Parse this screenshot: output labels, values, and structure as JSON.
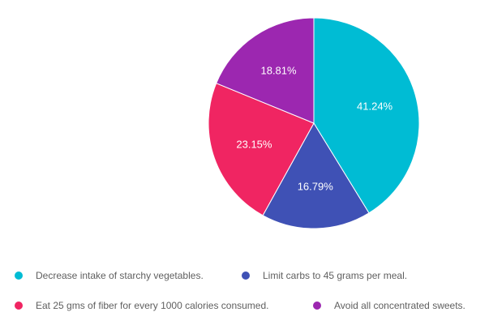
{
  "chart_data": {
    "type": "pie",
    "slices": [
      {
        "label": "Decrease intake of starchy vegetables.",
        "value": 41.24,
        "value_label": "41.24%",
        "color": "#00bcd4"
      },
      {
        "label": "Limit carbs to 45 grams per meal.",
        "value": 16.79,
        "value_label": "16.79%",
        "color": "#3f51b5"
      },
      {
        "label": "Eat 25 gms of fiber for every 1000 calories consumed.",
        "value": 23.15,
        "value_label": "23.15%",
        "color": "#f02562"
      },
      {
        "label": "Avoid all concentrated sweets.",
        "value": 18.81,
        "value_label": "18.81%",
        "color": "#9c27b0"
      }
    ],
    "legend_position": "bottom",
    "start_angle": "12 o'clock",
    "direction": "clockwise"
  }
}
